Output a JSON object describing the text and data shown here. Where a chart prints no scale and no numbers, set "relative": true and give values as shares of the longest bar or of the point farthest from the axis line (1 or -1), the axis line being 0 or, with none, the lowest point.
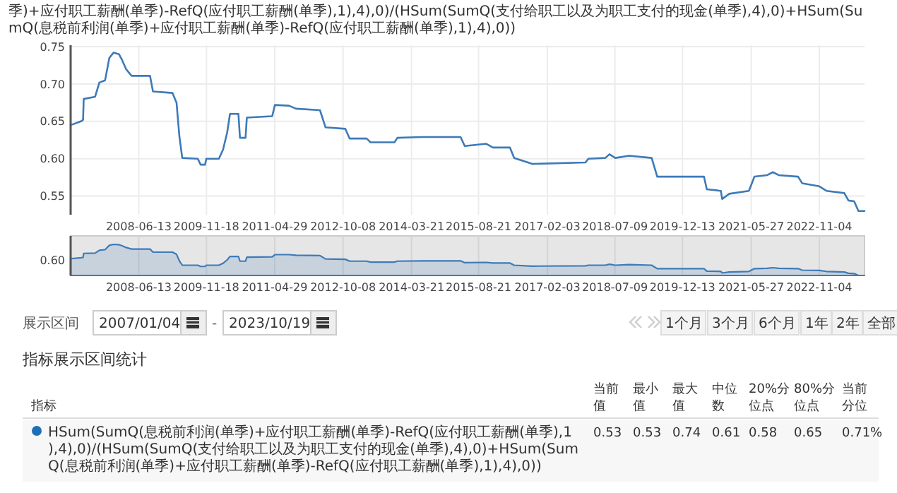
{
  "chart_data": [
    {
      "type": "line",
      "title": "季)+应付职工薪酬(单季)-RefQ(应付职工薪酬(单季),1),4),0)/(HSum(SumQ(支付给职工以及为职工支付的现金(单季),4),0)+HSum(SumQ(息税前利润(单季)+应付职工薪酬(单季)-RefQ(应付职工薪酬(单季),1),4),0))",
      "color": "#3d7ab8",
      "grid": true,
      "x": [
        "2007-01-04",
        "2007-03-25",
        "2007-04-10",
        "2007-04-15",
        "2007-07-12",
        "2007-08-14",
        "2007-09-27",
        "2007-10-30",
        "2007-12-01",
        "2008-01-12",
        "2008-02-03",
        "2008-03-07",
        "2008-04-19",
        "2008-09-08",
        "2008-10-01",
        "2009-03-01",
        "2009-04-01",
        "2009-04-23",
        "2009-05-15",
        "2009-09-12",
        "2009-10-04",
        "2009-11-07",
        "2009-11-17",
        "2010-02-22",
        "2010-03-26",
        "2010-04-27",
        "2010-05-19",
        "2010-07-23",
        "2010-08-04",
        "2010-09-16",
        "2010-09-26",
        "2011-04-10",
        "2011-05-01",
        "2011-08-17",
        "2011-10-11",
        "2012-04-13",
        "2012-05-26",
        "2012-10-26",
        "2012-11-28",
        "2013-04-08",
        "2013-05-09",
        "2013-11-09",
        "2013-12-02",
        "2014-06-13",
        "2015-04-04",
        "2015-05-06",
        "2015-10-19",
        "2015-12-10",
        "2016-04-19",
        "2016-05-22",
        "2016-10-09",
        "2017-11-24",
        "2017-12-16",
        "2018-04-26",
        "2018-05-28",
        "2018-07-12",
        "2018-10-27",
        "2019-04-19",
        "2019-06-01",
        "2020-05-27",
        "2020-06-18",
        "2020-10-04",
        "2020-10-15",
        "2020-12-08",
        "2021-05-09",
        "2021-06-21",
        "2021-09-28",
        "2021-11-10",
        "2021-12-24",
        "2022-05-24",
        "2022-06-25",
        "2022-11-04",
        "2022-12-29",
        "2023-05-16",
        "2023-06-17",
        "2023-07-31",
        "2023-09-02",
        "2023-10-19"
      ],
      "values": [
        0.645,
        0.65,
        0.652,
        0.68,
        0.683,
        0.702,
        0.705,
        0.735,
        0.742,
        0.74,
        0.733,
        0.72,
        0.711,
        0.711,
        0.69,
        0.688,
        0.675,
        0.63,
        0.601,
        0.6,
        0.592,
        0.592,
        0.6,
        0.6,
        0.612,
        0.635,
        0.66,
        0.66,
        0.628,
        0.628,
        0.655,
        0.657,
        0.672,
        0.671,
        0.667,
        0.665,
        0.642,
        0.64,
        0.627,
        0.627,
        0.622,
        0.622,
        0.628,
        0.629,
        0.629,
        0.617,
        0.62,
        0.615,
        0.615,
        0.601,
        0.593,
        0.595,
        0.6,
        0.601,
        0.606,
        0.601,
        0.604,
        0.601,
        0.576,
        0.576,
        0.559,
        0.557,
        0.546,
        0.553,
        0.557,
        0.576,
        0.578,
        0.582,
        0.578,
        0.576,
        0.567,
        0.563,
        0.557,
        0.554,
        0.544,
        0.543,
        0.53,
        0.53
      ],
      "xlim": [
        "2007-01-04",
        "2023-10-19"
      ],
      "xticks": [
        "2008-06-13",
        "2009-11-18",
        "2011-04-29",
        "2012-10-08",
        "2014-03-21",
        "2015-08-21",
        "2017-02-03",
        "2018-07-09",
        "2019-12-13",
        "2021-05-27",
        "2022-11-04"
      ],
      "ylim": [
        0.525,
        0.752
      ],
      "yticks": [
        {
          "value": 0.55,
          "label": "0.55"
        },
        {
          "value": 0.6,
          "label": "0.60"
        },
        {
          "value": 0.65,
          "label": "0.65"
        },
        {
          "value": 0.7,
          "label": "0.70"
        },
        {
          "value": 0.75,
          "label": "0.75"
        }
      ]
    },
    {
      "type": "area",
      "color": "#3d7ab8",
      "x": [
        "2007-01-04",
        "2007-03-25",
        "2007-04-10",
        "2007-04-15",
        "2007-07-12",
        "2007-08-14",
        "2007-09-27",
        "2007-10-30",
        "2007-12-01",
        "2008-01-12",
        "2008-02-03",
        "2008-03-07",
        "2008-04-19",
        "2008-09-08",
        "2008-10-01",
        "2009-03-01",
        "2009-04-01",
        "2009-04-23",
        "2009-05-15",
        "2009-09-12",
        "2009-10-04",
        "2009-11-07",
        "2009-11-17",
        "2010-02-22",
        "2010-03-26",
        "2010-04-27",
        "2010-05-19",
        "2010-07-23",
        "2010-08-04",
        "2010-09-16",
        "2010-09-26",
        "2011-04-10",
        "2011-05-01",
        "2011-08-17",
        "2011-10-11",
        "2012-04-13",
        "2012-05-26",
        "2012-10-26",
        "2012-11-28",
        "2013-04-08",
        "2013-05-09",
        "2013-11-09",
        "2013-12-02",
        "2014-06-13",
        "2015-04-04",
        "2015-05-06",
        "2015-10-19",
        "2015-12-10",
        "2016-04-19",
        "2016-05-22",
        "2016-10-09",
        "2017-11-24",
        "2017-12-16",
        "2018-04-26",
        "2018-05-28",
        "2018-07-12",
        "2018-10-27",
        "2019-04-19",
        "2019-06-01",
        "2020-05-27",
        "2020-06-18",
        "2020-10-04",
        "2020-10-15",
        "2020-12-08",
        "2021-05-09",
        "2021-06-21",
        "2021-09-28",
        "2021-11-10",
        "2021-12-24",
        "2022-05-24",
        "2022-06-25",
        "2022-11-04",
        "2022-12-29",
        "2023-05-16",
        "2023-06-17",
        "2023-07-31",
        "2023-09-02",
        "2023-10-19"
      ],
      "values": [
        0.54,
        0.57,
        0.58,
        0.71,
        0.72,
        0.81,
        0.83,
        0.97,
        1,
        0.99,
        0.96,
        0.9,
        0.85,
        0.85,
        0.75,
        0.75,
        0.68,
        0.47,
        0.33,
        0.33,
        0.29,
        0.29,
        0.33,
        0.33,
        0.39,
        0.5,
        0.61,
        0.61,
        0.46,
        0.46,
        0.59,
        0.6,
        0.67,
        0.67,
        0.65,
        0.64,
        0.53,
        0.52,
        0.46,
        0.46,
        0.43,
        0.43,
        0.46,
        0.47,
        0.47,
        0.41,
        0.42,
        0.4,
        0.4,
        0.33,
        0.3,
        0.31,
        0.33,
        0.33,
        0.36,
        0.33,
        0.35,
        0.33,
        0.22,
        0.22,
        0.14,
        0.13,
        0.08,
        0.11,
        0.13,
        0.22,
        0.23,
        0.25,
        0.23,
        0.22,
        0.17,
        0.16,
        0.13,
        0.11,
        0.07,
        0.06,
        0,
        0
      ],
      "relative": true,
      "grid": "x",
      "annotations": [
        "0.60"
      ],
      "xlim": [
        "2007-01-04",
        "2023-10-19"
      ],
      "xticks": [
        "2008-06-13",
        "2009-11-18",
        "2011-04-29",
        "2012-10-08",
        "2014-03-21",
        "2015-08-21",
        "2017-02-03",
        "2018-07-09",
        "2019-12-13",
        "2021-05-27",
        "2022-11-04"
      ]
    },
    {
      "type": "other",
      "title": "指标展示区间统计",
      "annotations": [
        "展示区间",
        "2007/01/04",
        "-",
        "2023/10/19",
        "1个月",
        "3个月",
        "6个月",
        "1年",
        "2年",
        "全部",
        "指标",
        "当前值",
        "最小值",
        "最大值",
        "中位数",
        "20%分位点",
        "80%分位点",
        "当前分位",
        "HSum(SumQ(息税前利润(单季)+应付职工薪酬(单季)-RefQ(应付职工薪酬(单季),1),4),0)/(HSum(SumQ(支付给职工以及为职工支付的现金(单季),4),0)+HSum(SumQ(息税前利润(单季)+应付职工薪酬(单季)-RefQ(应付职工薪酬(单季),1),4),0))",
        "0.53",
        "0.53",
        "0.74",
        "0.61",
        "0.58",
        "0.65",
        "0.71%"
      ]
    }
  ]
}
